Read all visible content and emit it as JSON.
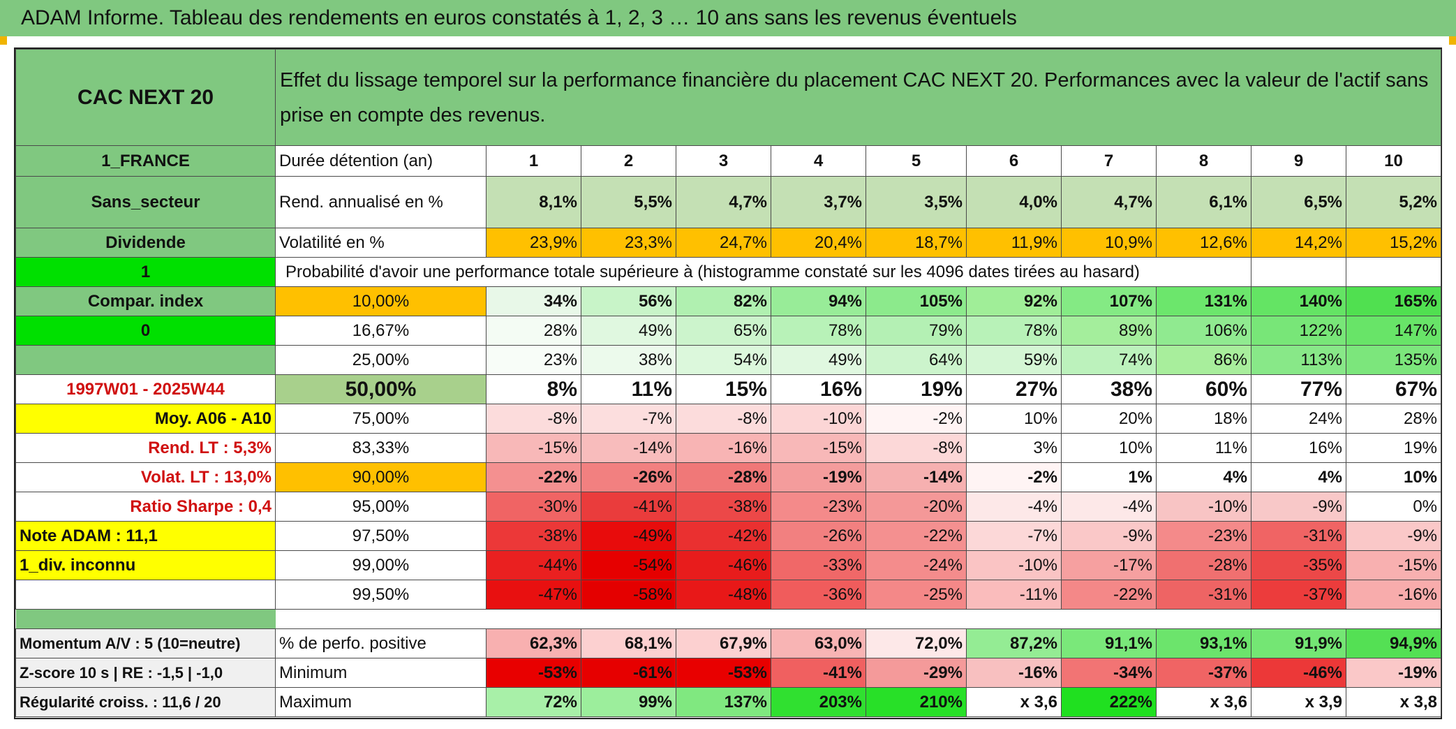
{
  "title": "ADAM Informe. Tableau des rendements en euros constatés à 1, 2, 3 … 10 ans sans les revenus éventuels",
  "header": {
    "asset": "CAC NEXT 20",
    "description": "Effet du lissage temporel sur la performance financière du placement CAC NEXT 20. Performances avec la valeur de l'actif sans prise en compte des revenus."
  },
  "side": {
    "country": "1_FRANCE",
    "sector": "Sans_secteur",
    "dividend": "Dividende",
    "flag1": "1",
    "compar": "Compar. index",
    "flag0": "0",
    "period": "1997W01 - 2025W44",
    "moy": "Moy. A06 - A10",
    "rend_lt": "Rend. LT :   5,3%",
    "volat_lt": "Volat. LT :   13,0%",
    "sharpe": "Ratio Sharpe :    0,4",
    "note": "Note ADAM : 11,1",
    "div": "1_div. inconnu",
    "momentum": "Momentum A/V : 5 (10=neutre)",
    "zscore": "Z-score 10 s | RE : -1,5 | -1,0",
    "regularite": "Régularité croiss. : 11,6 / 20"
  },
  "rows": {
    "duree_label": "Durée détention (an)",
    "years": [
      "1",
      "2",
      "3",
      "4",
      "5",
      "6",
      "7",
      "8",
      "9",
      "10"
    ],
    "rend_label": "Rend. annualisé en %",
    "rend": [
      "8,1%",
      "5,5%",
      "4,7%",
      "3,7%",
      "3,5%",
      "4,0%",
      "4,7%",
      "6,1%",
      "6,5%",
      "5,2%"
    ],
    "vol_label": "Volatilité en %",
    "vol": [
      "23,9%",
      "23,3%",
      "24,7%",
      "20,4%",
      "18,7%",
      "11,9%",
      "10,9%",
      "12,6%",
      "14,2%",
      "15,2%"
    ],
    "proba_label": "Probabilité d'avoir une performance totale supérieure à (histogramme constaté sur les 4096 dates tirées au hasard)"
  },
  "quantiles": [
    {
      "p": "10,00%",
      "v": [
        "34%",
        "56%",
        "82%",
        "94%",
        "105%",
        "92%",
        "107%",
        "131%",
        "140%",
        "165%"
      ]
    },
    {
      "p": "16,67%",
      "v": [
        "28%",
        "49%",
        "65%",
        "78%",
        "79%",
        "78%",
        "89%",
        "106%",
        "122%",
        "147%"
      ]
    },
    {
      "p": "25,00%",
      "v": [
        "23%",
        "38%",
        "54%",
        "49%",
        "64%",
        "59%",
        "74%",
        "86%",
        "113%",
        "135%"
      ]
    },
    {
      "p": "50,00%",
      "v": [
        "8%",
        "11%",
        "15%",
        "16%",
        "19%",
        "27%",
        "38%",
        "60%",
        "77%",
        "67%"
      ]
    },
    {
      "p": "75,00%",
      "v": [
        "-8%",
        "-7%",
        "-8%",
        "-10%",
        "-2%",
        "10%",
        "20%",
        "18%",
        "24%",
        "28%"
      ]
    },
    {
      "p": "83,33%",
      "v": [
        "-15%",
        "-14%",
        "-16%",
        "-15%",
        "-8%",
        "3%",
        "10%",
        "11%",
        "16%",
        "19%"
      ]
    },
    {
      "p": "90,00%",
      "v": [
        "-22%",
        "-26%",
        "-28%",
        "-19%",
        "-14%",
        "-2%",
        "1%",
        "4%",
        "4%",
        "10%"
      ]
    },
    {
      "p": "95,00%",
      "v": [
        "-30%",
        "-41%",
        "-38%",
        "-23%",
        "-20%",
        "-4%",
        "-4%",
        "-10%",
        "-9%",
        "0%"
      ]
    },
    {
      "p": "97,50%",
      "v": [
        "-38%",
        "-49%",
        "-42%",
        "-26%",
        "-22%",
        "-7%",
        "-9%",
        "-23%",
        "-31%",
        "-9%"
      ]
    },
    {
      "p": "99,00%",
      "v": [
        "-44%",
        "-54%",
        "-46%",
        "-33%",
        "-24%",
        "-10%",
        "-17%",
        "-28%",
        "-35%",
        "-15%"
      ]
    },
    {
      "p": "99,50%",
      "v": [
        "-47%",
        "-58%",
        "-48%",
        "-36%",
        "-25%",
        "-11%",
        "-22%",
        "-31%",
        "-37%",
        "-16%"
      ]
    }
  ],
  "bottom": [
    {
      "label": "% de perfo. positive",
      "v": [
        "62,3%",
        "68,1%",
        "67,9%",
        "63,0%",
        "72,0%",
        "87,2%",
        "91,1%",
        "93,1%",
        "91,9%",
        "94,9%"
      ]
    },
    {
      "label": "Minimum",
      "v": [
        "-53%",
        "-61%",
        "-53%",
        "-41%",
        "-29%",
        "-16%",
        "-34%",
        "-37%",
        "-46%",
        "-19%"
      ]
    },
    {
      "label": "Maximum",
      "v": [
        "72%",
        "99%",
        "137%",
        "203%",
        "210%",
        "x 3,6",
        "222%",
        "x 3,6",
        "x 3,9",
        "x 3,8"
      ]
    }
  ],
  "colors": {
    "green": "#80c880",
    "light_green": "#c4e0b4",
    "bright_green": "#00e000",
    "orange": "#ffc000",
    "yellow": "#ffff00",
    "red_text": "#d01010",
    "quantile_bg": [
      [
        "#e8f8e8",
        "#c8f4c8",
        "#b0f0b0",
        "#98ec98",
        "#8cea8c",
        "#a0ee98",
        "#84ea84",
        "#6ce66c",
        "#64e464",
        "#50e050"
      ],
      [
        "#f4fcf4",
        "#e0f8e0",
        "#ccf4cc",
        "#b8f2b8",
        "#b4f0b4",
        "#b8f2b8",
        "#a4ee9c",
        "#90ea90",
        "#78e678",
        "#68e468"
      ],
      [
        "#f8fdf8",
        "#ecfaec",
        "#dcf8dc",
        "#e0f8e0",
        "#ccf4cc",
        "#d4f6d4",
        "#bcf2bc",
        "#a8ee9c",
        "#88e888",
        "#7ce67c"
      ],
      [
        "#ffffff",
        "#ffffff",
        "#ffffff",
        "#ffffff",
        "#ffffff",
        "#ffffff",
        "#ffffff",
        "#ffffff",
        "#ffffff",
        "#ffffff"
      ],
      [
        "#fcdcdc",
        "#fcdede",
        "#fcdcdc",
        "#fcd6d6",
        "#fff4f4",
        "#ffffff",
        "#ffffff",
        "#ffffff",
        "#ffffff",
        "#ffffff"
      ],
      [
        "#f8b8b8",
        "#f8bcbc",
        "#f8b4b4",
        "#f8b8b8",
        "#fcd8d8",
        "#ffffff",
        "#ffffff",
        "#ffffff",
        "#ffffff",
        "#ffffff"
      ],
      [
        "#f49090",
        "#f28080",
        "#f07878",
        "#f49c9c",
        "#f6b0b0",
        "#fff4f4",
        "#ffffff",
        "#ffffff",
        "#ffffff",
        "#ffffff"
      ],
      [
        "#f06464",
        "#ea3c3c",
        "#ec4848",
        "#f48a8a",
        "#f49898",
        "#fde8e8",
        "#fde8e8",
        "#f8c4c4",
        "#f8c8c8",
        "#ffffff"
      ],
      [
        "#ec3838",
        "#e80c0c",
        "#ea3030",
        "#f28080",
        "#f49090",
        "#fcd8d8",
        "#fac8c8",
        "#f48a8a",
        "#f06464",
        "#fac8c8"
      ],
      [
        "#ea2020",
        "#e60000",
        "#e81c1c",
        "#f06868",
        "#f48c8c",
        "#fac4c4",
        "#f6a0a0",
        "#f07070",
        "#ec4848",
        "#f8b0b0"
      ],
      [
        "#e81010",
        "#e40000",
        "#e81818",
        "#f05c5c",
        "#f48888",
        "#fabcbc",
        "#f48888",
        "#ee6464",
        "#ec3c3c",
        "#f8acac"
      ]
    ],
    "positive_bg": [
      "#f8b0b0",
      "#fcd0d0",
      "#fcd0d0",
      "#f8b4b4",
      "#fde8e8",
      "#94ec94",
      "#7ae87a",
      "#6ce46c",
      "#74e674",
      "#54e054"
    ],
    "min_bg": [
      "#e80000",
      "#e60000",
      "#e80000",
      "#f06060",
      "#f49a9a",
      "#f8c0c0",
      "#f27474",
      "#f06464",
      "#ec3838",
      "#fac8c8"
    ],
    "max_bg": [
      "#a8f0a8",
      "#9cee9c",
      "#80e880",
      "#30e030",
      "#28e028",
      "#ffffff",
      "#20e020",
      "#ffffff",
      "#ffffff",
      "#ffffff"
    ]
  }
}
